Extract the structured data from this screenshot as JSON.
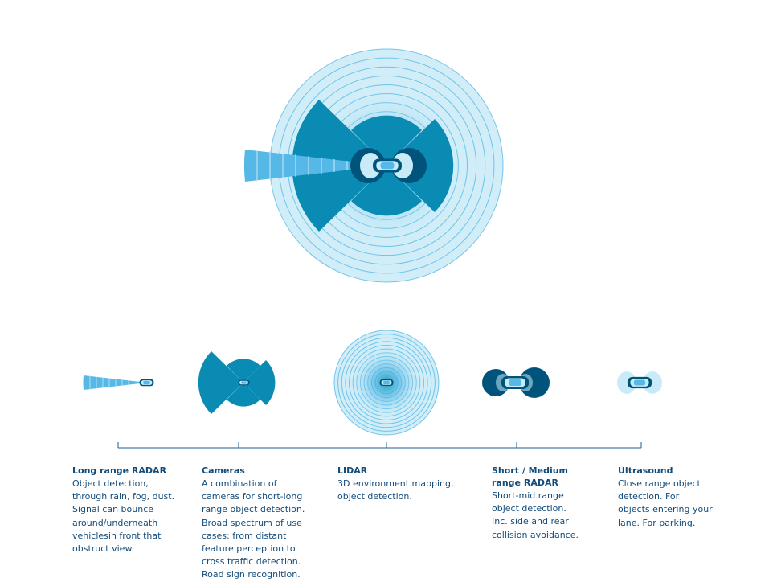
{
  "colors": {
    "dark_blue": "#00537a",
    "mid_blue": "#0a8bb3",
    "light_blue": "#c9ebf7",
    "radar_blue": "#56b8e6",
    "ring_stroke": "#56b8e6",
    "text_blue": "#134b7a",
    "timeline": "#1f5d8c"
  },
  "icons": [
    "car-icon",
    "long-range-radar-beam",
    "camera-fields",
    "lidar-rings",
    "short-medium-radar-lobes",
    "ultrasound-lobes"
  ],
  "sensors": [
    {
      "title": "Long range RADAR",
      "description": "Object detection, through rain, fog, dust. Signal can bounce around/underneath vehiclesin front that obstruct view."
    },
    {
      "title": "Cameras",
      "description": "A combination of cameras for short-long range object detection. Broad spectrum of use cases: from distant feature perception to cross traffic detection. Road sign recognition."
    },
    {
      "title": "LIDAR",
      "description": "3D environment mapping, object detection."
    },
    {
      "title": "Short / Medium range RADAR",
      "description": "Short-mid range object detection. Inc. side and rear collision avoidance."
    },
    {
      "title": "Ultrasound",
      "description": "Close range object detection. For objects entering your lane. For parking."
    }
  ]
}
